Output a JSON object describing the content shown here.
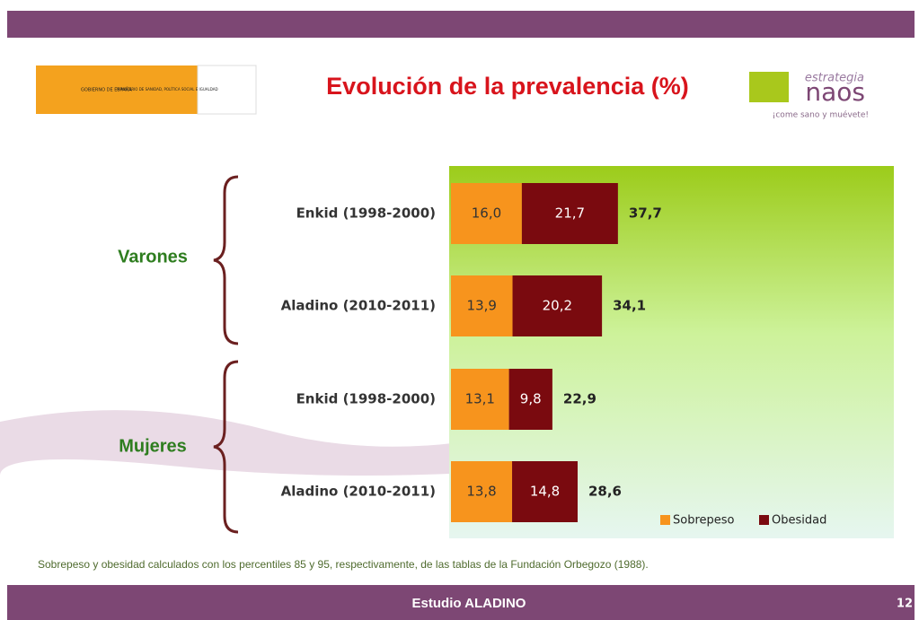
{
  "header": {
    "gov_logo": "GOBIERNO DE ESPAÑA",
    "ministry": "MINISTERIO DE SANIDAD, POLÍTICA SOCIAL E IGUALDAD",
    "naos_top": "estrategia",
    "naos_main": "naos",
    "naos_slogan": "¡come sano y muévete!"
  },
  "chart_data": {
    "type": "stacked-barh",
    "title": "Evolución de la prevalencia  (%)",
    "groups": [
      "Varones",
      "Mujeres"
    ],
    "categories": [
      "Enkid (1998-2000)",
      "Aladino (2010-2011)",
      "Enkid (1998-2000)",
      "Aladino (2010-2011)"
    ],
    "series": [
      {
        "name": "Sobrepeso",
        "color": "#f7941d",
        "values": [
          16.0,
          13.9,
          13.1,
          13.8
        ],
        "value_labels": [
          "16,0",
          "13,9",
          "13,1",
          "13,8"
        ]
      },
      {
        "name": "Obesidad",
        "color": "#7a0a0f",
        "values": [
          21.7,
          20.2,
          9.8,
          14.8
        ],
        "value_labels": [
          "21,7",
          "20,2",
          "9,8",
          "14,8"
        ]
      }
    ],
    "totals": {
      "values": [
        37.7,
        34.1,
        22.9,
        28.6
      ],
      "value_labels": [
        "37,7",
        "34,1",
        "22,9",
        "28,6"
      ]
    },
    "legend": "bottom-right"
  },
  "note": "Sobrepeso y obesidad calculados con los percentiles 85 y 95, respectivamente, de las tablas de la Fundación Orbegozo (1988).",
  "footer": {
    "title": "Estudio ALADINO",
    "page": "12"
  }
}
